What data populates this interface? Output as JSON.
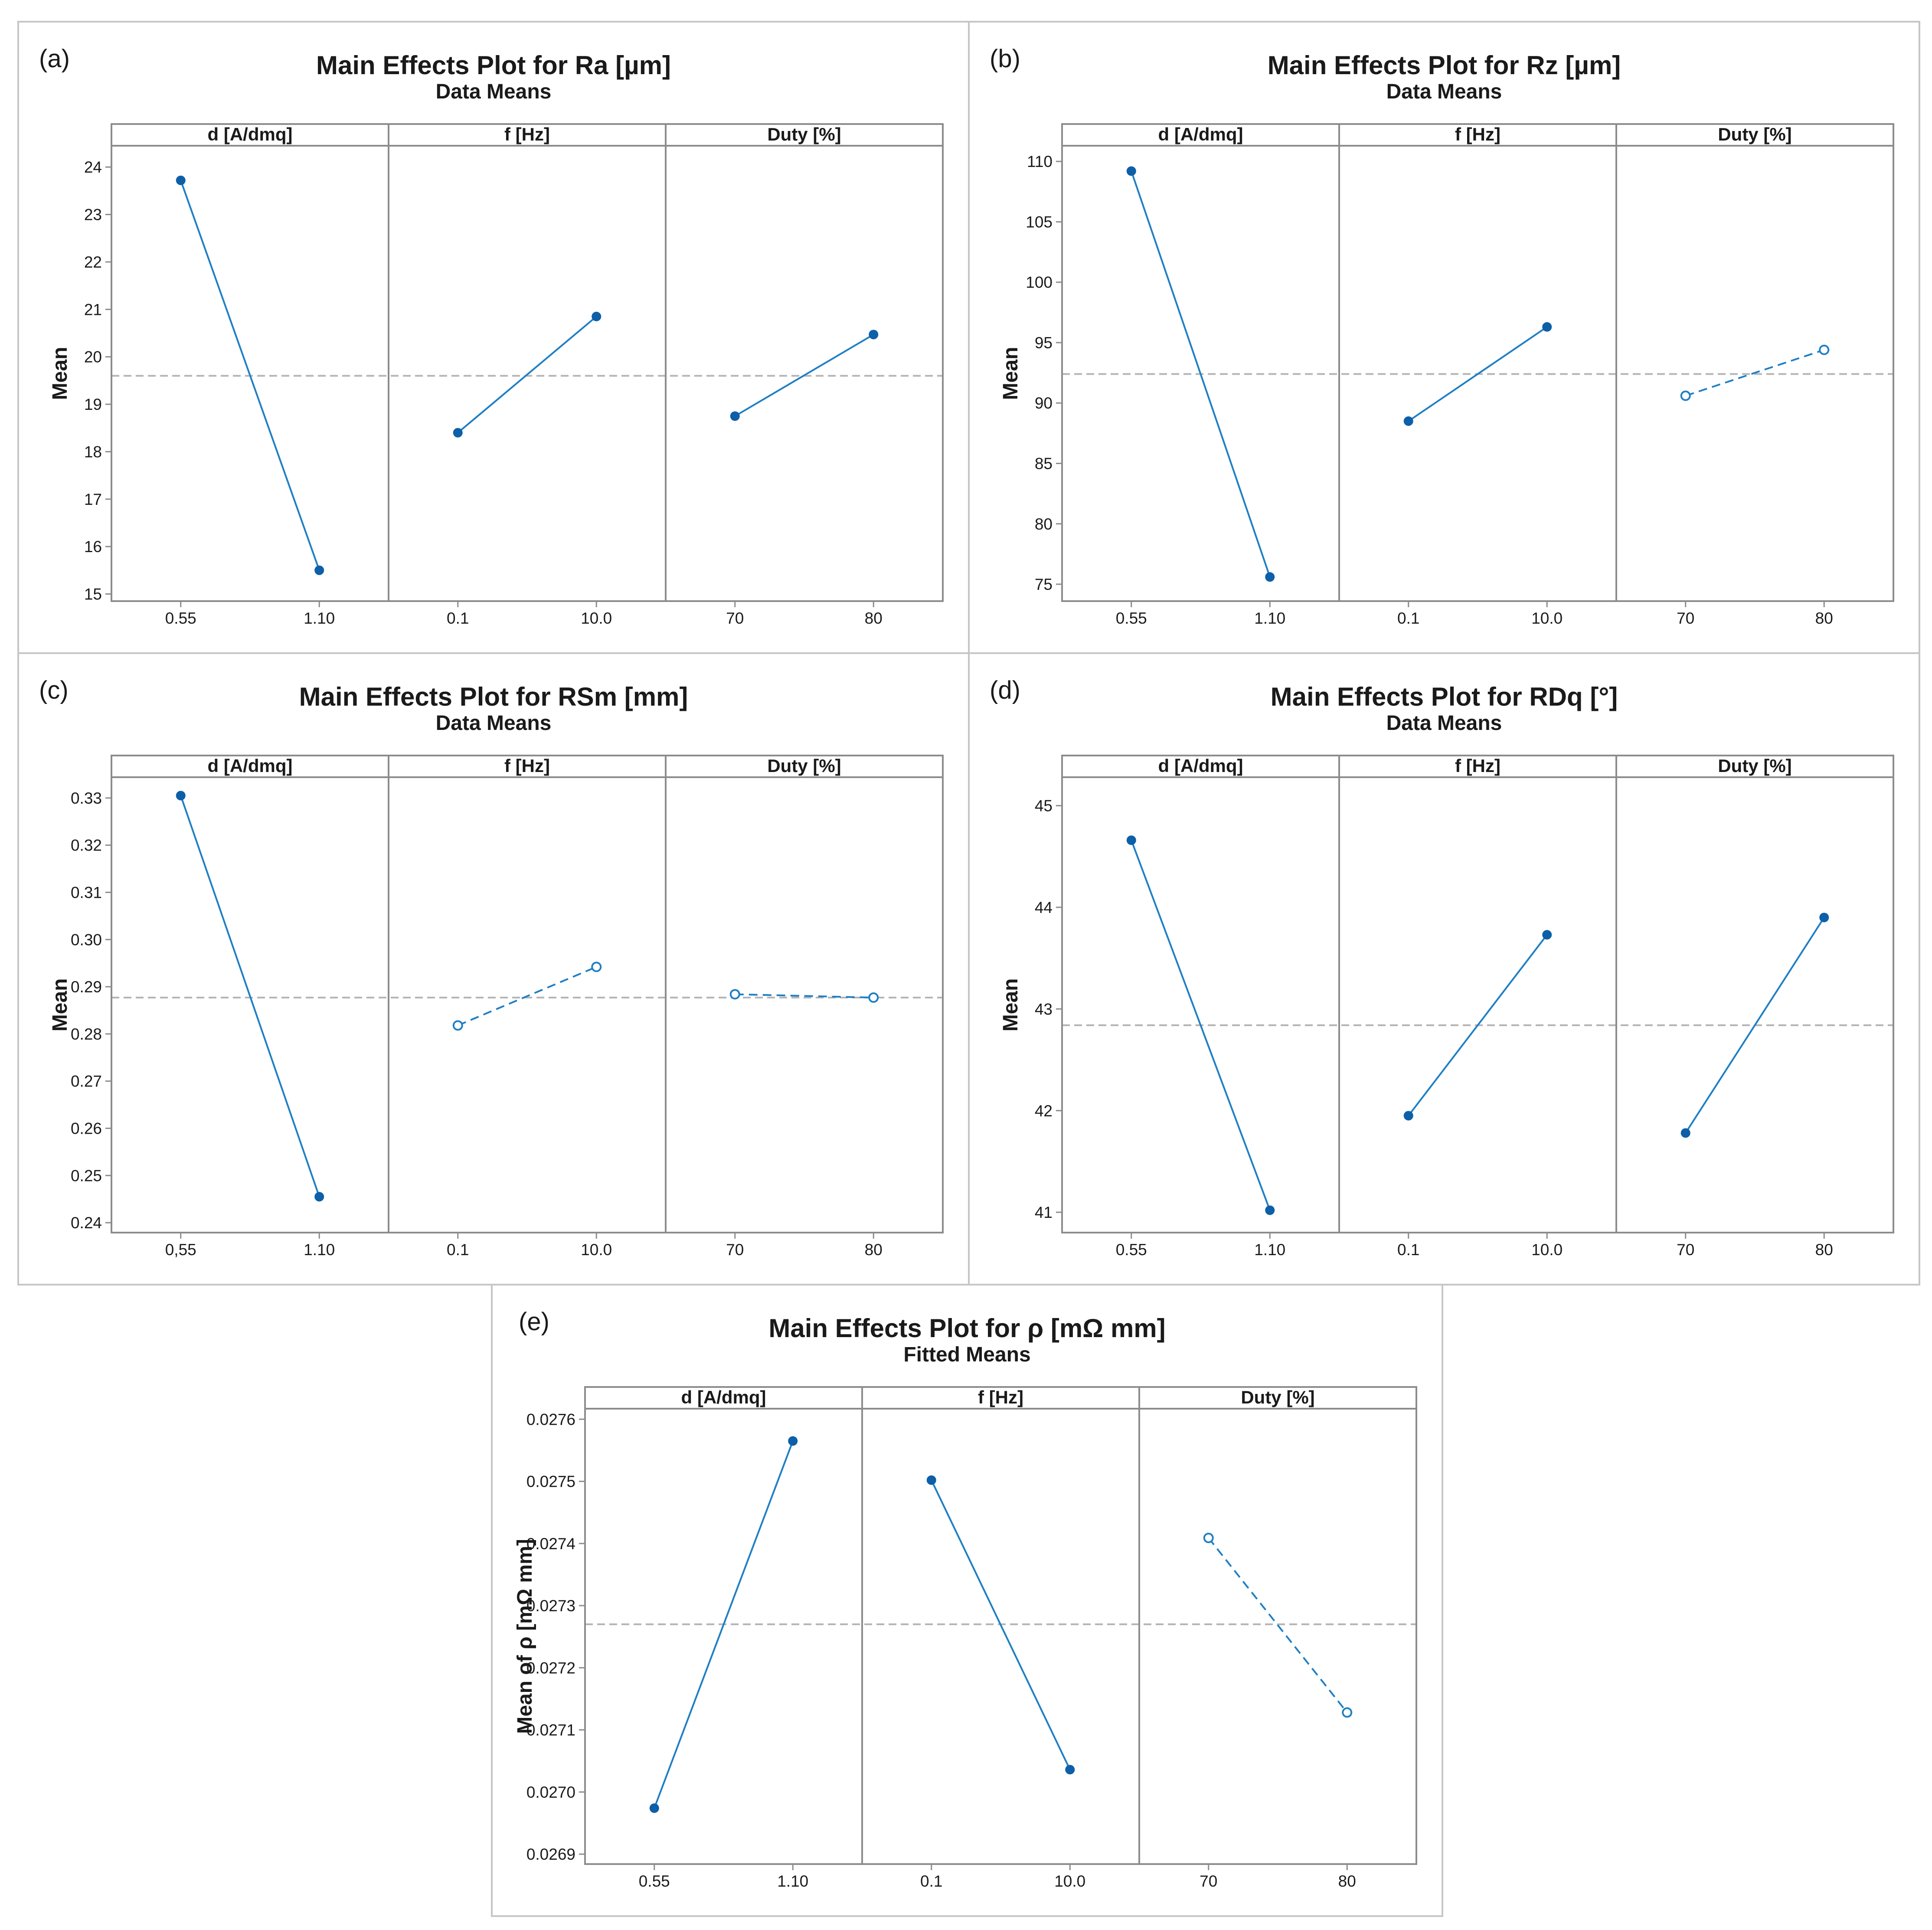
{
  "colors": {
    "series": "#1f7fc4",
    "marker": "#0d5fa8",
    "reference": "#b4b4b4",
    "frame": "#8c8c8c",
    "strip_bg": "#ffffff"
  },
  "chart_data": [
    {
      "id": "a",
      "panel_label": "(a)",
      "type": "line",
      "title": "Main Effects Plot for Ra [µm]",
      "subtitle": "Data Means",
      "ylabel": "Mean",
      "ylim": [
        14.85,
        24.45
      ],
      "yticks": [
        15,
        16,
        17,
        18,
        19,
        20,
        21,
        22,
        23,
        24
      ],
      "ytick_labels": [
        "15",
        "16",
        "17",
        "18",
        "19",
        "20",
        "21",
        "22",
        "23",
        "24"
      ],
      "reference_mean": 19.6,
      "factors": [
        {
          "name": "d [A/dmq]",
          "levels": [
            "0.55",
            "1.10"
          ],
          "values": [
            23.72,
            15.5
          ],
          "significant": true
        },
        {
          "name": "f [Hz]",
          "levels": [
            "0.1",
            "10.0"
          ],
          "values": [
            18.4,
            20.85
          ],
          "significant": true
        },
        {
          "name": "Duty [%]",
          "levels": [
            "70",
            "80"
          ],
          "values": [
            18.75,
            20.47
          ],
          "significant": true
        }
      ]
    },
    {
      "id": "b",
      "panel_label": "(b)",
      "type": "line",
      "title": "Main Effects Plot for Rz [µm]",
      "subtitle": "Data Means",
      "ylabel": "Mean",
      "ylim": [
        73.6,
        111.3
      ],
      "yticks": [
        75,
        80,
        85,
        90,
        95,
        100,
        105,
        110
      ],
      "ytick_labels": [
        "75",
        "80",
        "85",
        "90",
        "95",
        "100",
        "105",
        "110"
      ],
      "reference_mean": 92.4,
      "factors": [
        {
          "name": "d [A/dmq]",
          "levels": [
            "0.55",
            "1.10"
          ],
          "values": [
            109.2,
            75.6
          ],
          "significant": true
        },
        {
          "name": "f [Hz]",
          "levels": [
            "0.1",
            "10.0"
          ],
          "values": [
            88.5,
            96.3
          ],
          "significant": true
        },
        {
          "name": "Duty [%]",
          "levels": [
            "70",
            "80"
          ],
          "values": [
            90.6,
            94.4
          ],
          "significant": false
        }
      ]
    },
    {
      "id": "c",
      "panel_label": "(c)",
      "type": "line",
      "title": "Main Effects Plot for RSm [mm]",
      "subtitle": "Data Means",
      "ylabel": "Mean",
      "ylim": [
        0.2379,
        0.3344
      ],
      "yticks": [
        0.24,
        0.25,
        0.26,
        0.27,
        0.28,
        0.29,
        0.3,
        0.31,
        0.32,
        0.33
      ],
      "ytick_labels": [
        "0.24",
        "0.25",
        "0.26",
        "0.27",
        "0.28",
        "0.29",
        "0.30",
        "0.31",
        "0.32",
        "0.33"
      ],
      "reference_mean": 0.2877,
      "factors": [
        {
          "name": "d [A/dmq]",
          "levels": [
            "0,55",
            "1.10"
          ],
          "values": [
            0.3305,
            0.2455
          ],
          "significant": true
        },
        {
          "name": "f [Hz]",
          "levels": [
            "0.1",
            "10.0"
          ],
          "values": [
            0.2818,
            0.2942
          ],
          "significant": false
        },
        {
          "name": "Duty [%]",
          "levels": [
            "70",
            "80"
          ],
          "values": [
            0.2884,
            0.2877
          ],
          "significant": false
        }
      ]
    },
    {
      "id": "d",
      "panel_label": "(d)",
      "type": "line",
      "title": "Main Effects Plot for RDq [°]",
      "subtitle": "Data Means",
      "ylabel": "Mean",
      "ylim": [
        40.8,
        45.28
      ],
      "yticks": [
        41,
        42,
        43,
        44,
        45
      ],
      "ytick_labels": [
        "41",
        "42",
        "43",
        "44",
        "45"
      ],
      "reference_mean": 42.84,
      "factors": [
        {
          "name": "d [A/dmq]",
          "levels": [
            "0.55",
            "1.10"
          ],
          "values": [
            44.66,
            41.02
          ],
          "significant": true
        },
        {
          "name": "f [Hz]",
          "levels": [
            "0.1",
            "10.0"
          ],
          "values": [
            41.95,
            43.73
          ],
          "significant": true
        },
        {
          "name": "Duty [%]",
          "levels": [
            "70",
            "80"
          ],
          "values": [
            41.78,
            43.9
          ],
          "significant": true
        }
      ]
    },
    {
      "id": "e",
      "panel_label": "(e)",
      "type": "line",
      "title": "Main Effects Plot for ρ [mΩ mm]",
      "subtitle": "Fitted Means",
      "ylabel": "Mean of ρ [mΩ mm]",
      "ylim": [
        0.026884,
        0.027617
      ],
      "yticks": [
        0.0269,
        0.027,
        0.0271,
        0.0272,
        0.0273,
        0.0274,
        0.0275,
        0.0276
      ],
      "ytick_labels": [
        "0.0269",
        "0.0270",
        "0.0271",
        "0.0272",
        "0.0273",
        "0.0274",
        "0.0275",
        "0.0276"
      ],
      "reference_mean": 0.02727,
      "factors": [
        {
          "name": "d [A/dmq]",
          "levels": [
            "0.55",
            "1.10"
          ],
          "values": [
            0.026974,
            0.027565
          ],
          "significant": true
        },
        {
          "name": "f [Hz]",
          "levels": [
            "0.1",
            "10.0"
          ],
          "values": [
            0.027502,
            0.027036
          ],
          "significant": true
        },
        {
          "name": "Duty [%]",
          "levels": [
            "70",
            "80"
          ],
          "values": [
            0.027409,
            0.027128
          ],
          "significant": false
        }
      ]
    }
  ]
}
